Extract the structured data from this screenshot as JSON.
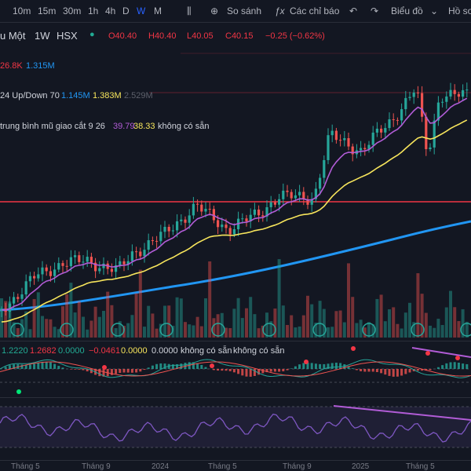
{
  "toolbar": {
    "intervals": [
      "10m",
      "15m",
      "30m",
      "1h",
      "4h",
      "D",
      "W",
      "M"
    ],
    "compare": "So sánh",
    "indicators": "Các chỉ báo",
    "chart_menu": "Biểu đồ",
    "profile": "Hồ sơ"
  },
  "legend": {
    "symbol": "u Một",
    "interval": "1W",
    "exchange": "HSX",
    "open": "O40.40",
    "high": "H40.40",
    "low": "L40.05",
    "close": "C40.15",
    "change": "−0.25 (−0.62%)"
  },
  "volume": {
    "values": [
      "26.8K",
      "1.315M"
    ]
  },
  "updown": {
    "name": "24 Up/Down 70",
    "values": [
      "1.145M",
      "1.383M",
      "2.529M"
    ]
  },
  "ema_cross": {
    "name": "trung bình mũ giao cắt 9 26",
    "values": [
      "39.79",
      "38.33",
      "không có sẵn"
    ]
  },
  "macd": {
    "values": [
      "1.2220",
      "1.2682",
      "0.0000",
      "−0.0461",
      "0.0000",
      "0.0000",
      "không có sẵn",
      "không có sẵn"
    ]
  },
  "time_axis": [
    "Tháng 5",
    "Tháng 9",
    "2024",
    "Tháng 5",
    "Tháng 9",
    "2025",
    "Tháng 5"
  ]
}
